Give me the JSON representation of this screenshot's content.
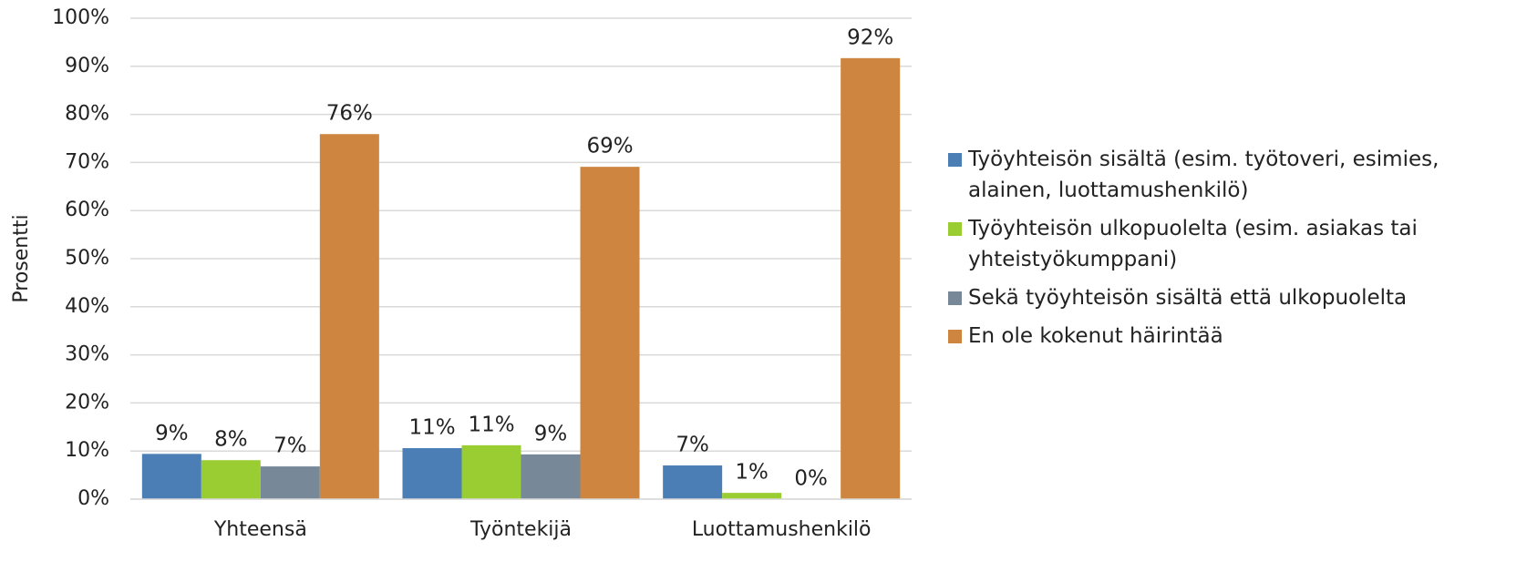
{
  "chart_data": {
    "type": "bar",
    "y_label": "Prosentti",
    "categories": [
      "Yhteensä",
      "Työntekijä",
      "Luottamushenkilö"
    ],
    "series": [
      {
        "name": "Työyhteisön sisältä (esim. työtoveri, esimies, alainen, luottamushenkilö)",
        "color": "#4a7eb4",
        "values": [
          9.4,
          10.6,
          7.0
        ],
        "value_labels": [
          "9%",
          "11%",
          "7%"
        ]
      },
      {
        "name": "Työyhteisön ulkopuolelta (esim. asiakas tai yhteistyökumppani)",
        "color": "#9acd32",
        "values": [
          8.1,
          11.2,
          1.3
        ],
        "value_labels": [
          "8%",
          "11%",
          "1%"
        ]
      },
      {
        "name": "Sekä työyhteisön sisältä että ulkopuolelta",
        "color": "#778899",
        "values": [
          6.8,
          9.3,
          0
        ],
        "value_labels": [
          "7%",
          "9%",
          "0%"
        ]
      },
      {
        "name": "En ole kokenut häirintää",
        "color": "#cd853f",
        "values": [
          75.9,
          69.1,
          91.7
        ],
        "value_labels": [
          "76%",
          "69%",
          "92%"
        ]
      }
    ],
    "ylim": [
      0,
      100
    ],
    "yticks": [
      {
        "value": 0,
        "label": "0%"
      },
      {
        "value": 10,
        "label": "10%"
      },
      {
        "value": 20,
        "label": "20%"
      },
      {
        "value": 30,
        "label": "30%"
      },
      {
        "value": 40,
        "label": "40%"
      },
      {
        "value": 50,
        "label": "50%"
      },
      {
        "value": 60,
        "label": "60%"
      },
      {
        "value": 70,
        "label": "70%"
      },
      {
        "value": 80,
        "label": "80%"
      },
      {
        "value": 90,
        "label": "90%"
      },
      {
        "value": 100,
        "label": "100%"
      }
    ],
    "grid": true
  }
}
